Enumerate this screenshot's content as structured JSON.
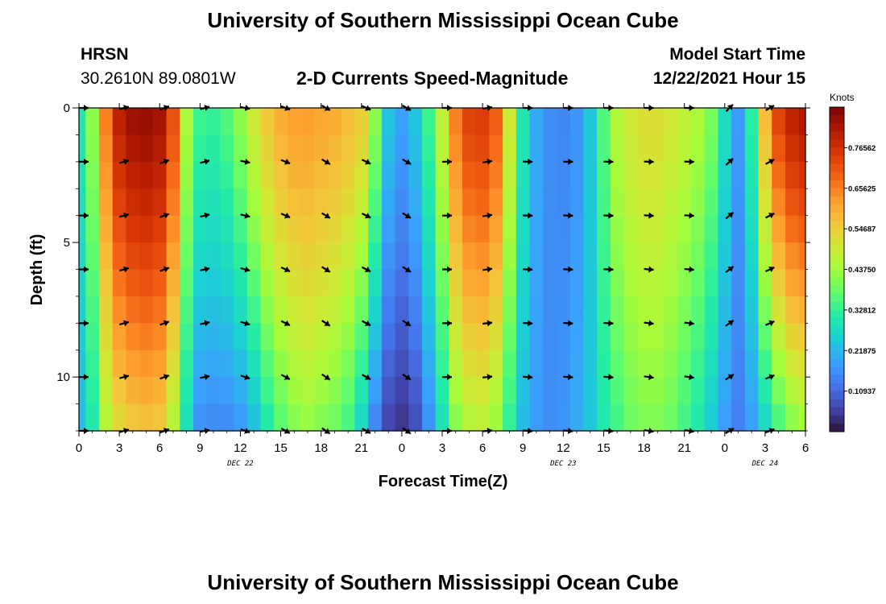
{
  "header": {
    "title": "University of Southern Mississippi Ocean Cube",
    "station": "HRSN",
    "coords": "30.2610N  89.0801W",
    "chart_title": "2-D Currents Speed-Magnitude",
    "model_start_label": "Model Start Time",
    "model_start_value": "12/22/2021 Hour 15"
  },
  "footer": {
    "title": "University of Southern Mississippi Ocean Cube"
  },
  "colorbar": {
    "unit": "Knots",
    "labels": [
      "0.76562",
      "0.65625",
      "0.54687",
      "0.43750",
      "0.32812",
      "0.21875",
      "0.10937"
    ]
  },
  "colors": {
    "scale": [
      "#30123b",
      "#4145ab",
      "#4675ed",
      "#39a2fc",
      "#1bcfd4",
      "#24eca6",
      "#61fc6c",
      "#a4fc3b",
      "#d1e834",
      "#f3c63a",
      "#fe9b2d",
      "#f36315",
      "#d93806",
      "#b11901",
      "#7a0402"
    ]
  },
  "chart_data": {
    "type": "heatmap",
    "title": "2-D Currents Speed-Magnitude",
    "xlabel": "Forecast Time(Z)",
    "ylabel": "Depth (ft)",
    "xlim": [
      0,
      54
    ],
    "ylim": [
      12,
      0
    ],
    "x_ticks": [
      0,
      3,
      6,
      9,
      12,
      15,
      18,
      21,
      24,
      27,
      30,
      33,
      36,
      39,
      42,
      45,
      48,
      51,
      54
    ],
    "x_tick_labels": [
      "0",
      "3",
      "6",
      "9",
      "12",
      "15",
      "18",
      "21",
      "0",
      "3",
      "6",
      "9",
      "12",
      "15",
      "18",
      "21",
      "0",
      "3",
      "6"
    ],
    "y_ticks": [
      0,
      5,
      10
    ],
    "y_tick_labels": [
      "0",
      "5",
      "10"
    ],
    "date_labels": [
      {
        "x": 12,
        "text": "DEC 22"
      },
      {
        "x": 36,
        "text": "DEC 23"
      },
      {
        "x": 51,
        "text": "DEC 24"
      }
    ],
    "color_range": [
      0.0,
      0.875
    ],
    "color_unit": "Knots",
    "depths": [
      0,
      2,
      4,
      6,
      8,
      10,
      12
    ],
    "speed_profile": {
      "hours": [
        0,
        1,
        2,
        3,
        4,
        5,
        6,
        7,
        8,
        9,
        10,
        11,
        12,
        13,
        14,
        15,
        16,
        17,
        18,
        19,
        20,
        21,
        22,
        23,
        24,
        25,
        26,
        27,
        28,
        29,
        30,
        31,
        32,
        33,
        34,
        35,
        36,
        37,
        38,
        39,
        40,
        41,
        42,
        43,
        44,
        45,
        46,
        47,
        48,
        49,
        50,
        51,
        52,
        53,
        54
      ],
      "surface": [
        0.3,
        0.42,
        0.66,
        0.8,
        0.84,
        0.85,
        0.83,
        0.72,
        0.45,
        0.34,
        0.33,
        0.36,
        0.42,
        0.5,
        0.56,
        0.6,
        0.62,
        0.62,
        0.61,
        0.6,
        0.58,
        0.55,
        0.42,
        0.24,
        0.19,
        0.24,
        0.34,
        0.48,
        0.66,
        0.74,
        0.75,
        0.7,
        0.5,
        0.3,
        0.2,
        0.16,
        0.15,
        0.17,
        0.24,
        0.36,
        0.46,
        0.5,
        0.52,
        0.52,
        0.5,
        0.48,
        0.45,
        0.4,
        0.28,
        0.18,
        0.32,
        0.58,
        0.74,
        0.8,
        0.82
      ],
      "bottom": [
        0.22,
        0.3,
        0.45,
        0.52,
        0.55,
        0.56,
        0.55,
        0.45,
        0.28,
        0.16,
        0.15,
        0.15,
        0.17,
        0.22,
        0.3,
        0.36,
        0.4,
        0.42,
        0.4,
        0.38,
        0.34,
        0.26,
        0.14,
        0.06,
        0.04,
        0.07,
        0.16,
        0.28,
        0.4,
        0.45,
        0.46,
        0.42,
        0.32,
        0.22,
        0.18,
        0.16,
        0.17,
        0.2,
        0.24,
        0.3,
        0.34,
        0.38,
        0.4,
        0.4,
        0.38,
        0.34,
        0.3,
        0.24,
        0.18,
        0.14,
        0.18,
        0.26,
        0.34,
        0.4,
        0.42
      ]
    },
    "vectors": {
      "description": "current direction arrows on a 3-hourly grid at depths 0,2,4,6,8,10,12 ft",
      "hours": [
        0,
        3,
        6,
        9,
        12,
        15,
        18,
        21,
        24,
        27,
        30,
        33,
        36,
        39,
        42,
        45,
        48,
        51
      ],
      "direction_deg": [
        [
          90,
          75,
          70,
          75,
          100,
          110,
          120,
          115,
          120,
          90,
          80,
          90,
          90,
          90,
          90,
          90,
          45,
          60
        ],
        [
          90,
          75,
          70,
          80,
          110,
          120,
          125,
          120,
          125,
          90,
          85,
          95,
          95,
          95,
          100,
          100,
          60,
          70
        ]
      ]
    }
  }
}
